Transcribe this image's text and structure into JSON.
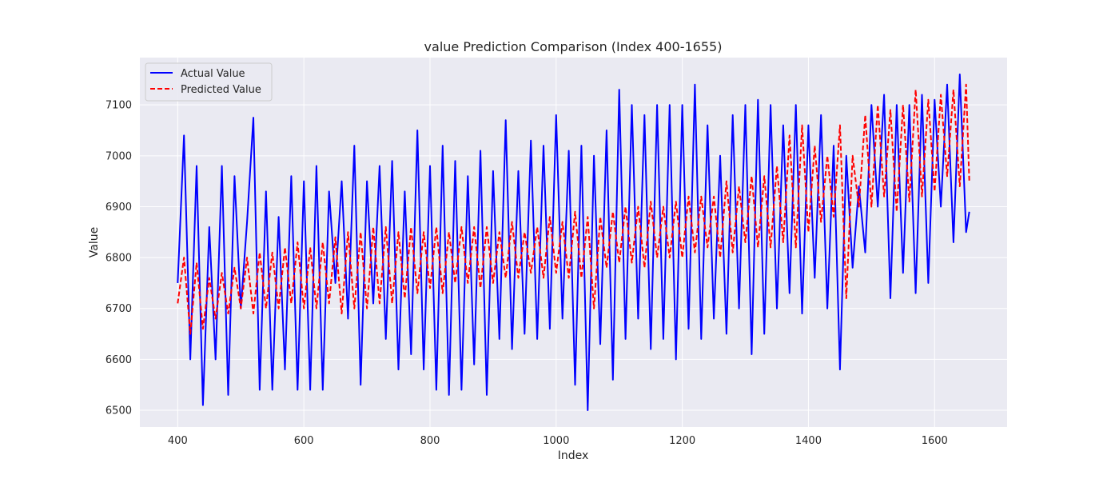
{
  "chart_data": {
    "type": "line",
    "title": "value Prediction Comparison (Index 400-1655)",
    "xlabel": "Index",
    "ylabel": "Value",
    "xlim": [
      340,
      1715
    ],
    "ylim": [
      6467,
      7193
    ],
    "x_range": [
      400,
      1655
    ],
    "x_ticks": [
      400,
      600,
      800,
      1000,
      1200,
      1400,
      1600
    ],
    "y_ticks": [
      6500,
      6600,
      6700,
      6800,
      6900,
      7000,
      7100
    ],
    "grid": true,
    "legend_position": "upper-left",
    "series": [
      {
        "name": "Actual Value",
        "color": "#0000ff",
        "style": "solid",
        "x": [
          400,
          410,
          420,
          430,
          440,
          450,
          460,
          470,
          480,
          490,
          500,
          510,
          520,
          530,
          540,
          550,
          560,
          570,
          580,
          590,
          600,
          610,
          620,
          630,
          640,
          650,
          660,
          670,
          680,
          690,
          700,
          710,
          720,
          730,
          740,
          750,
          760,
          770,
          780,
          790,
          800,
          810,
          820,
          830,
          840,
          850,
          860,
          870,
          880,
          890,
          900,
          910,
          920,
          930,
          940,
          950,
          960,
          970,
          980,
          990,
          1000,
          1010,
          1020,
          1030,
          1040,
          1050,
          1060,
          1070,
          1080,
          1090,
          1100,
          1110,
          1120,
          1130,
          1140,
          1150,
          1160,
          1170,
          1180,
          1190,
          1200,
          1210,
          1220,
          1230,
          1240,
          1250,
          1260,
          1270,
          1280,
          1290,
          1300,
          1310,
          1320,
          1330,
          1340,
          1350,
          1360,
          1370,
          1380,
          1390,
          1400,
          1410,
          1420,
          1430,
          1440,
          1450,
          1460,
          1470,
          1480,
          1490,
          1500,
          1510,
          1520,
          1530,
          1540,
          1550,
          1560,
          1570,
          1580,
          1590,
          1600,
          1610,
          1620,
          1630,
          1640,
          1650,
          1655
        ],
        "y": [
          6750,
          7040,
          6600,
          6980,
          6510,
          6860,
          6600,
          6980,
          6530,
          6960,
          6700,
          6870,
          7075,
          6540,
          6930,
          6540,
          6880,
          6580,
          6960,
          6540,
          6950,
          6540,
          6980,
          6540,
          6930,
          6750,
          6950,
          6680,
          7020,
          6550,
          6950,
          6710,
          6980,
          6640,
          6990,
          6580,
          6930,
          6610,
          7050,
          6580,
          6980,
          6540,
          7020,
          6530,
          6990,
          6540,
          6960,
          6590,
          7010,
          6530,
          6970,
          6640,
          7070,
          6620,
          6970,
          6650,
          7030,
          6640,
          7020,
          6660,
          7080,
          6680,
          7010,
          6550,
          7020,
          6500,
          7000,
          6630,
          7050,
          6560,
          7130,
          6640,
          7100,
          6680,
          7080,
          6620,
          7100,
          6640,
          7100,
          6600,
          7100,
          6660,
          7140,
          6640,
          7060,
          6680,
          7000,
          6650,
          7080,
          6700,
          7100,
          6610,
          7110,
          6650,
          7100,
          6700,
          7060,
          6730,
          7100,
          6690,
          7060,
          6760,
          7080,
          6700,
          7020,
          6580,
          7000,
          6780,
          6940,
          6810,
          7100,
          6900,
          7120,
          6720,
          7100,
          6770,
          7100,
          6730,
          7120,
          6750,
          7110,
          6900,
          7140,
          6830,
          7160,
          6850,
          6890
        ]
      },
      {
        "name": "Predicted Value",
        "color": "#ff0000",
        "style": "dashed",
        "x": [
          400,
          410,
          420,
          430,
          440,
          450,
          460,
          470,
          480,
          490,
          500,
          510,
          520,
          530,
          540,
          550,
          560,
          570,
          580,
          590,
          600,
          610,
          620,
          630,
          640,
          650,
          660,
          670,
          680,
          690,
          700,
          710,
          720,
          730,
          740,
          750,
          760,
          770,
          780,
          790,
          800,
          810,
          820,
          830,
          840,
          850,
          860,
          870,
          880,
          890,
          900,
          910,
          920,
          930,
          940,
          950,
          960,
          970,
          980,
          990,
          1000,
          1010,
          1020,
          1030,
          1040,
          1050,
          1060,
          1070,
          1080,
          1090,
          1100,
          1110,
          1120,
          1130,
          1140,
          1150,
          1160,
          1170,
          1180,
          1190,
          1200,
          1210,
          1220,
          1230,
          1240,
          1250,
          1260,
          1270,
          1280,
          1290,
          1300,
          1310,
          1320,
          1330,
          1340,
          1350,
          1360,
          1370,
          1380,
          1390,
          1400,
          1410,
          1420,
          1430,
          1440,
          1450,
          1460,
          1470,
          1480,
          1490,
          1500,
          1510,
          1520,
          1530,
          1540,
          1550,
          1560,
          1570,
          1580,
          1590,
          1600,
          1610,
          1620,
          1630,
          1640,
          1650,
          1655
        ],
        "y": [
          6710,
          6800,
          6650,
          6790,
          6660,
          6760,
          6680,
          6770,
          6690,
          6780,
          6700,
          6800,
          6690,
          6810,
          6700,
          6810,
          6700,
          6820,
          6710,
          6830,
          6700,
          6820,
          6700,
          6830,
          6710,
          6840,
          6690,
          6850,
          6700,
          6850,
          6700,
          6860,
          6710,
          6860,
          6710,
          6850,
          6720,
          6860,
          6730,
          6850,
          6740,
          6860,
          6730,
          6850,
          6750,
          6860,
          6750,
          6860,
          6740,
          6860,
          6750,
          6850,
          6760,
          6870,
          6760,
          6850,
          6770,
          6860,
          6760,
          6880,
          6770,
          6870,
          6760,
          6890,
          6760,
          6880,
          6700,
          6880,
          6780,
          6890,
          6790,
          6900,
          6790,
          6900,
          6780,
          6910,
          6800,
          6900,
          6800,
          6910,
          6800,
          6920,
          6810,
          6920,
          6820,
          6920,
          6800,
          6950,
          6810,
          6940,
          6830,
          6960,
          6820,
          6960,
          6820,
          6980,
          6830,
          7040,
          6820,
          7060,
          6850,
          7020,
          6870,
          7000,
          6880,
          7060,
          6720,
          7000,
          6900,
          7080,
          6900,
          7100,
          6920,
          7090,
          6890,
          7100,
          6910,
          7130,
          6920,
          7110,
          6930,
          7120,
          6960,
          7130,
          6940,
          7140,
          6950
        ]
      }
    ]
  }
}
